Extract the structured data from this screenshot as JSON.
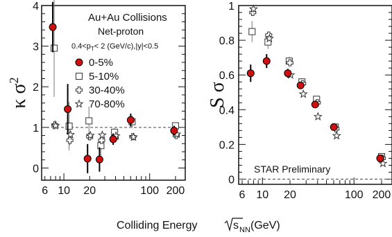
{
  "chart_data": [
    {
      "type": "scatter",
      "panel": "left",
      "ylabel_parts": {
        "base": "κ σ",
        "sup": "2"
      },
      "xscale": "log",
      "xlim": [
        5.5,
        260
      ],
      "ylim": [
        -0.3,
        4
      ],
      "xticks": [
        {
          "v": 6,
          "label": "6"
        },
        {
          "v": 10,
          "label": "10"
        },
        {
          "v": 20,
          "label": "20"
        },
        {
          "v": 100,
          "label": "100"
        },
        {
          "v": 200,
          "label": "200"
        }
      ],
      "yticks": [
        {
          "v": 0,
          "label": "0"
        },
        {
          "v": 1,
          "label": "1"
        },
        {
          "v": 2,
          "label": "2"
        },
        {
          "v": 3,
          "label": "3"
        },
        {
          "v": 4,
          "label": "4"
        }
      ],
      "reference_line": 1,
      "legend": {
        "title": "Au+Au Collisions",
        "subtitle": "Net-proton",
        "cuts": {
          "a": "0.4<p",
          "b": "T",
          "c": "< 2 (GeV/c),|y|<0.5"
        },
        "placement": "top"
      },
      "series": [
        {
          "name": "0-5%",
          "marker": "filled-circle",
          "x": [
            7.7,
            11.5,
            19.6,
            27,
            39,
            62.4,
            200
          ],
          "y": [
            3.47,
            1.45,
            0.23,
            0.21,
            0.71,
            1.18,
            0.92
          ],
          "err": [
            0.62,
            0.62,
            0.36,
            0.3,
            0.14,
            0.16,
            0.12
          ]
        },
        {
          "name": "5-10%",
          "marker": "open-square",
          "x": [
            7.7,
            11.5,
            19.6,
            27,
            39,
            62.4,
            200
          ],
          "y": [
            2.95,
            1.03,
            1.16,
            0.55,
            0.88,
            1.14,
            1.04
          ],
          "err": [
            1.2,
            0.6,
            0.35,
            0.25,
            0.1,
            0.15,
            0.07
          ]
        },
        {
          "name": "30-40%",
          "marker": "open-cross",
          "x": [
            7.7,
            11.5,
            19.6,
            27,
            39,
            62.4,
            200
          ],
          "y": [
            1.06,
            0.68,
            0.77,
            0.68,
            0.74,
            0.77,
            0.8
          ],
          "err": [
            0.12,
            0.12,
            0.1,
            0.08,
            0.06,
            0.05,
            0.04
          ]
        },
        {
          "name": "70-80%",
          "marker": "open-star",
          "x": [
            7.7,
            11.5,
            19.6,
            27,
            39,
            62.4,
            200
          ],
          "y": [
            1.04,
            0.82,
            0.8,
            0.81,
            0.79,
            0.76,
            0.83
          ],
          "err": [
            0.07,
            0.06,
            0.05,
            0.05,
            0.04,
            0.04,
            0.03
          ]
        }
      ]
    },
    {
      "type": "scatter",
      "panel": "right",
      "ylabel": "S σ",
      "xscale": "log",
      "xlim": [
        5.5,
        260
      ],
      "ylim": [
        -0.03,
        1
      ],
      "xticks": [
        {
          "v": 6,
          "label": "6"
        },
        {
          "v": 10,
          "label": "10"
        },
        {
          "v": 20,
          "label": "20"
        },
        {
          "v": 100,
          "label": "100"
        },
        {
          "v": 200,
          "label": "200"
        }
      ],
      "yticks": [
        {
          "v": 0,
          "label": "0"
        },
        {
          "v": 0.2,
          "label": "0.2"
        },
        {
          "v": 0.4,
          "label": "0.4"
        },
        {
          "v": 0.6,
          "label": "0.6"
        },
        {
          "v": 0.8,
          "label": "0.8"
        },
        {
          "v": 1,
          "label": "1"
        }
      ],
      "reference_line": 0,
      "annotation": "STAR Preliminary",
      "series": [
        {
          "name": "0-5%",
          "marker": "filled-circle",
          "x": [
            7.7,
            11.5,
            19.6,
            27,
            39,
            62.4,
            200
          ],
          "y": [
            0.61,
            0.68,
            0.61,
            0.54,
            0.43,
            0.3,
            0.12
          ],
          "err": [
            0.05,
            0.04,
            0.025,
            0.02,
            0.02,
            0.015,
            0.01
          ]
        },
        {
          "name": "5-10%",
          "marker": "open-square",
          "x": [
            7.7,
            11.5,
            19.6,
            27,
            39,
            62.4,
            200
          ],
          "y": [
            0.85,
            0.79,
            0.68,
            0.56,
            0.46,
            0.3,
            0.13
          ],
          "err": [
            0.06,
            0.04,
            0.025,
            0.02,
            0.02,
            0.015,
            0.01
          ]
        },
        {
          "name": "30-40%",
          "marker": "open-cross",
          "x": [
            7.7,
            11.5,
            19.6,
            27,
            39,
            62.4,
            200
          ],
          "y": [
            0.96,
            0.83,
            0.67,
            0.55,
            0.44,
            0.29,
            0.12
          ],
          "err": [
            0.02,
            0.015,
            0.01,
            0.01,
            0.01,
            0.01,
            0.005
          ]
        },
        {
          "name": "70-80%",
          "marker": "open-star",
          "x": [
            7.7,
            11.5,
            19.6,
            27,
            39,
            62.4,
            200
          ],
          "y": [
            0.98,
            0.81,
            0.6,
            0.49,
            0.36,
            0.25,
            0.09
          ],
          "err": [
            0.02,
            0.015,
            0.01,
            0.01,
            0.01,
            0.008,
            0.005
          ]
        }
      ]
    }
  ],
  "xlabel": {
    "before": "Colliding Energy ",
    "sub": "NN",
    "after": " (GeV)",
    "radicand": "s"
  },
  "colors": {
    "filled": "#d01010",
    "axis": "#111111",
    "marker_open": "#333333"
  }
}
